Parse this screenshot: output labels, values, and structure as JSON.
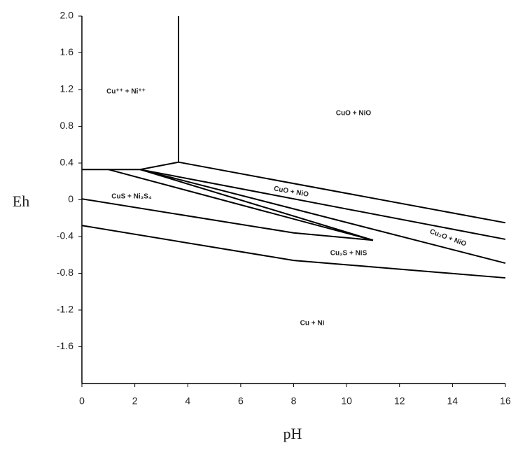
{
  "chart_data": {
    "type": "line",
    "xlabel": "pH",
    "ylabel": "Eh",
    "xlim": [
      0,
      16
    ],
    "xticks": [
      0,
      2,
      4,
      6,
      8,
      10,
      12,
      14,
      16
    ],
    "ylim": [
      -2,
      2
    ],
    "yticks": [
      {
        "value": 2,
        "label": "2.0"
      },
      1.6,
      1.2,
      0.8,
      0.4,
      0,
      -0.4,
      -0.8,
      -1.2,
      -1.6
    ],
    "series": [
      {
        "color": "#000000",
        "x": [
          3.65,
          3.65
        ],
        "values": [
          2,
          0.41
        ]
      },
      {
        "color": "#000000",
        "x": [
          3.65,
          16
        ],
        "values": [
          0.41,
          -0.25
        ]
      },
      {
        "color": "#000000",
        "x": [
          0,
          2.2,
          3.65
        ],
        "values": [
          0.33,
          0.33,
          0.41
        ]
      },
      {
        "color": "#000000",
        "x": [
          2.2,
          16
        ],
        "values": [
          0.33,
          -0.43
        ]
      },
      {
        "color": "#000000",
        "x": [
          2.2,
          16
        ],
        "values": [
          0.33,
          -0.69
        ]
      },
      {
        "color": "#000000",
        "x": [
          1,
          11
        ],
        "values": [
          0.33,
          -0.44
        ]
      },
      {
        "color": "#000000",
        "x": [
          2.2,
          11
        ],
        "values": [
          0.33,
          -0.44
        ]
      },
      {
        "color": "#000000",
        "x": [
          0,
          8,
          11
        ],
        "values": [
          0.01,
          -0.36,
          -0.44
        ]
      },
      {
        "color": "#000000",
        "x": [
          0,
          8,
          16
        ],
        "values": [
          -0.28,
          -0.66,
          -0.85
        ]
      }
    ],
    "annotations": [
      "Cu⁺⁺ + Ni⁺⁺",
      "CuO + NiO",
      "CuO + NiO",
      "CuS + Ni₃S₄",
      "Cu₂O + NiO",
      "Cu₂S + NiS",
      "Cu + Ni"
    ]
  }
}
